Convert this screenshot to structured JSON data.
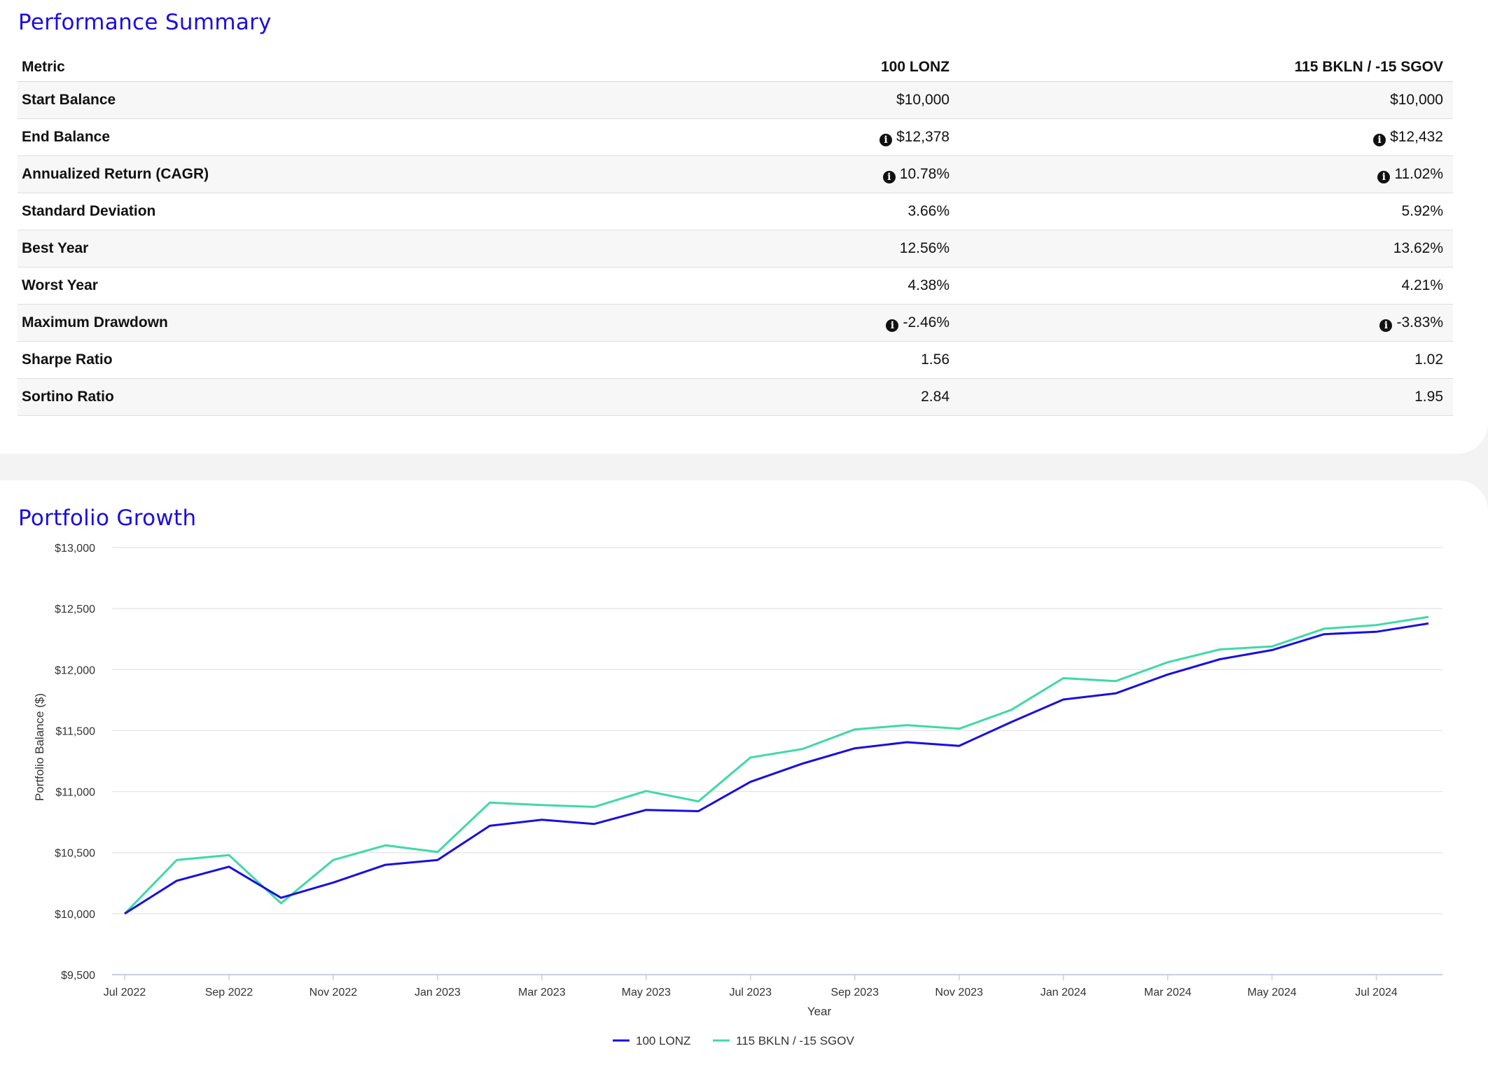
{
  "summary": {
    "title": "Performance Summary",
    "columns": [
      "Metric",
      "100 LONZ",
      "115 BKLN / -15 SGOV"
    ],
    "rows": [
      {
        "metric": "Start Balance",
        "a": "$10,000",
        "b": "$10,000",
        "info": false
      },
      {
        "metric": "End Balance",
        "a": "$12,378",
        "b": "$12,432",
        "info": true
      },
      {
        "metric": "Annualized Return (CAGR)",
        "a": "10.78%",
        "b": "11.02%",
        "info": true
      },
      {
        "metric": "Standard Deviation",
        "a": "3.66%",
        "b": "5.92%",
        "info": false
      },
      {
        "metric": "Best Year",
        "a": "12.56%",
        "b": "13.62%",
        "info": false
      },
      {
        "metric": "Worst Year",
        "a": "4.38%",
        "b": "4.21%",
        "info": false
      },
      {
        "metric": "Maximum Drawdown",
        "a": "-2.46%",
        "b": "-3.83%",
        "info": true
      },
      {
        "metric": "Sharpe Ratio",
        "a": "1.56",
        "b": "1.02",
        "info": false
      },
      {
        "metric": "Sortino Ratio",
        "a": "2.84",
        "b": "1.95",
        "info": false
      }
    ],
    "info_icon": "i"
  },
  "growth": {
    "title": "Portfolio Growth"
  },
  "chart_data": {
    "type": "line",
    "title": "",
    "xlabel": "Year",
    "ylabel": "Portfolio Balance ($)",
    "ylim": [
      9500,
      13000
    ],
    "y_ticks": [
      9500,
      10000,
      10500,
      11000,
      11500,
      12000,
      12500,
      13000
    ],
    "y_tick_labels": [
      "$9,500",
      "$10,000",
      "$10,500",
      "$11,000",
      "$11,500",
      "$12,000",
      "$12,500",
      "$13,000"
    ],
    "x": [
      "2022-07",
      "2022-08",
      "2022-09",
      "2022-10",
      "2022-11",
      "2022-12",
      "2023-01",
      "2023-02",
      "2023-03",
      "2023-04",
      "2023-05",
      "2023-06",
      "2023-07",
      "2023-08",
      "2023-09",
      "2023-10",
      "2023-11",
      "2023-12",
      "2024-01",
      "2024-02",
      "2024-03",
      "2024-04",
      "2024-05",
      "2024-06",
      "2024-07",
      "2024-08"
    ],
    "x_tick_labels": [
      "Jul 2022",
      "Sep 2022",
      "Nov 2022",
      "Jan 2023",
      "Mar 2023",
      "May 2023",
      "Jul 2023",
      "Sep 2023",
      "Nov 2023",
      "Jan 2024",
      "Mar 2024",
      "May 2024",
      "Jul 2024"
    ],
    "series": [
      {
        "name": "100 LONZ",
        "color": "#1a0ee0",
        "values": [
          10000,
          10270,
          10385,
          10130,
          10255,
          10400,
          10440,
          10720,
          10770,
          10735,
          10850,
          10840,
          11080,
          11230,
          11355,
          11405,
          11375,
          11570,
          11755,
          11805,
          11960,
          12085,
          12160,
          12290,
          12310,
          12378
        ]
      },
      {
        "name": "115 BKLN / -15 SGOV",
        "color": "#3fd9a6",
        "values": [
          10000,
          10440,
          10480,
          10085,
          10440,
          10560,
          10505,
          10910,
          10890,
          10875,
          11005,
          10920,
          11280,
          11350,
          11510,
          11545,
          11515,
          11670,
          11930,
          11905,
          12060,
          12165,
          12190,
          12335,
          12365,
          12432
        ]
      }
    ],
    "legend": "bottom-center",
    "grid": true
  }
}
